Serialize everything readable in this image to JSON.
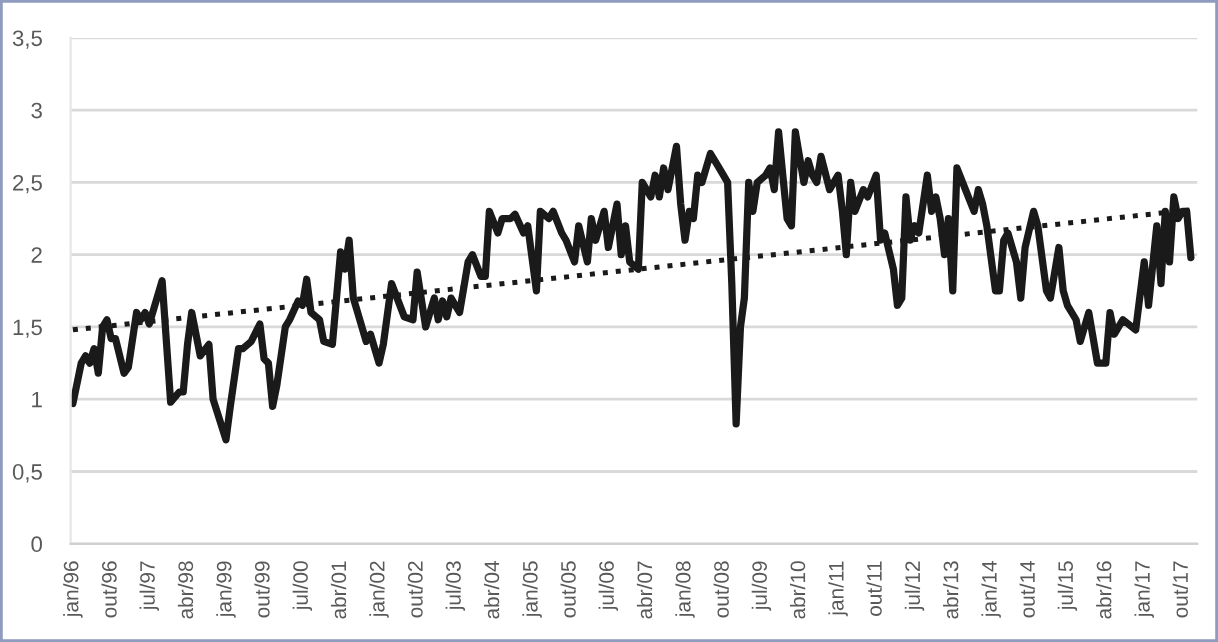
{
  "chart_data": {
    "type": "line",
    "x": [
      "1996-01",
      "1996-03",
      "1996-04",
      "1996-05",
      "1996-06",
      "1996-07",
      "1996-08",
      "1996-09",
      "1996-10",
      "1996-11",
      "1997-01",
      "1997-02",
      "1997-04",
      "1997-05",
      "1997-06",
      "1997-07",
      "1997-10",
      "1997-12",
      "1998-02",
      "1998-03",
      "1998-04",
      "1998-05",
      "1998-07",
      "1998-09",
      "1998-10",
      "1999-01",
      "1999-02",
      "1999-04",
      "1999-05",
      "1999-07",
      "1999-09",
      "1999-10",
      "1999-11",
      "1999-12",
      "2000-01",
      "2000-03",
      "2000-04",
      "2000-06",
      "2000-07",
      "2000-08",
      "2000-09",
      "2000-11",
      "2000-12",
      "2001-02",
      "2001-04",
      "2001-05",
      "2001-06",
      "2001-07",
      "2001-08",
      "2001-10",
      "2001-11",
      "2002-01",
      "2002-02",
      "2002-04",
      "2002-07",
      "2002-09",
      "2002-10",
      "2002-12",
      "2003-02",
      "2003-03",
      "2003-04",
      "2003-05",
      "2003-06",
      "2003-08",
      "2003-10",
      "2003-11",
      "2004-01",
      "2004-02",
      "2004-03",
      "2004-05",
      "2004-06",
      "2004-08",
      "2004-09",
      "2004-11",
      "2004-12",
      "2005-02",
      "2005-03",
      "2005-05",
      "2005-06",
      "2005-08",
      "2005-09",
      "2005-11",
      "2005-12",
      "2006-02",
      "2006-03",
      "2006-04",
      "2006-06",
      "2006-07",
      "2006-09",
      "2006-10",
      "2006-11",
      "2006-12",
      "2007-02",
      "2007-03",
      "2007-05",
      "2007-06",
      "2007-07",
      "2007-08",
      "2007-09",
      "2007-11",
      "2007-12",
      "2008-01",
      "2008-02",
      "2008-03",
      "2008-04",
      "2008-05",
      "2008-07",
      "2008-09",
      "2008-11",
      "2008-12",
      "2009-01",
      "2009-02",
      "2009-03",
      "2009-04",
      "2009-05",
      "2009-06",
      "2009-08",
      "2009-09",
      "2009-10",
      "2009-11",
      "2009-12",
      "2010-01",
      "2010-02",
      "2010-03",
      "2010-05",
      "2010-06",
      "2010-07",
      "2010-08",
      "2010-09",
      "2010-11",
      "2011-01",
      "2011-02",
      "2011-03",
      "2011-04",
      "2011-05",
      "2011-07",
      "2011-08",
      "2011-10",
      "2011-11",
      "2011-12",
      "2012-02",
      "2012-03",
      "2012-04",
      "2012-05",
      "2012-06",
      "2012-07",
      "2012-08",
      "2012-10",
      "2012-11",
      "2012-12",
      "2013-01",
      "2013-02",
      "2013-03",
      "2013-04",
      "2013-05",
      "2013-07",
      "2013-09",
      "2013-10",
      "2013-11",
      "2013-12",
      "2014-02",
      "2014-03",
      "2014-04",
      "2014-05",
      "2014-07",
      "2014-08",
      "2014-09",
      "2014-11",
      "2014-12",
      "2015-02",
      "2015-03",
      "2015-05",
      "2015-06",
      "2015-07",
      "2015-09",
      "2015-10",
      "2015-12",
      "2016-02",
      "2016-04",
      "2016-05",
      "2016-06",
      "2016-08",
      "2016-11",
      "2017-01",
      "2017-02",
      "2017-04",
      "2017-05",
      "2017-06",
      "2017-07",
      "2017-08",
      "2017-09",
      "2017-10",
      "2017-11",
      "2017-12"
    ],
    "series": [
      {
        "color": "#1a1a1a",
        "line_style": "solid",
        "values": [
          0.97,
          1.25,
          1.3,
          1.25,
          1.35,
          1.18,
          1.5,
          1.55,
          1.42,
          1.42,
          1.18,
          1.22,
          1.6,
          1.55,
          1.6,
          1.52,
          1.82,
          0.98,
          1.05,
          1.05,
          1.38,
          1.6,
          1.3,
          1.38,
          1.0,
          0.72,
          0.95,
          1.35,
          1.35,
          1.4,
          1.52,
          1.28,
          1.25,
          0.95,
          1.1,
          1.5,
          1.55,
          1.68,
          1.65,
          1.83,
          1.6,
          1.55,
          1.4,
          1.38,
          2.02,
          1.9,
          2.1,
          1.7,
          1.6,
          1.4,
          1.45,
          1.25,
          1.38,
          1.8,
          1.57,
          1.55,
          1.88,
          1.5,
          1.7,
          1.55,
          1.68,
          1.57,
          1.7,
          1.6,
          1.95,
          2.0,
          1.85,
          1.85,
          2.3,
          2.15,
          2.25,
          2.25,
          2.28,
          2.15,
          2.2,
          1.75,
          2.3,
          2.25,
          2.3,
          2.15,
          2.1,
          1.95,
          2.2,
          1.95,
          2.25,
          2.1,
          2.3,
          2.05,
          2.35,
          2.0,
          2.2,
          1.95,
          1.9,
          2.5,
          2.4,
          2.55,
          2.4,
          2.6,
          2.45,
          2.75,
          2.35,
          2.1,
          2.3,
          2.25,
          2.55,
          2.5,
          2.7,
          2.6,
          2.5,
          1.8,
          0.83,
          1.5,
          1.7,
          2.5,
          2.3,
          2.5,
          2.55,
          2.6,
          2.45,
          2.85,
          2.55,
          2.25,
          2.2,
          2.85,
          2.5,
          2.65,
          2.55,
          2.5,
          2.68,
          2.45,
          2.55,
          2.3,
          2.0,
          2.5,
          2.3,
          2.45,
          2.4,
          2.55,
          2.1,
          2.15,
          1.9,
          1.65,
          1.7,
          2.4,
          2.1,
          2.2,
          2.15,
          2.55,
          2.3,
          2.4,
          2.25,
          2.0,
          2.25,
          1.75,
          2.6,
          2.45,
          2.3,
          2.45,
          2.35,
          2.2,
          1.75,
          1.75,
          2.1,
          2.15,
          1.95,
          1.7,
          2.05,
          2.3,
          2.2,
          1.75,
          1.7,
          2.05,
          1.75,
          1.65,
          1.55,
          1.4,
          1.6,
          1.25,
          1.25,
          1.6,
          1.45,
          1.55,
          1.48,
          1.95,
          1.65,
          2.2,
          1.8,
          2.3,
          1.95,
          2.4,
          2.25,
          2.3,
          2.3,
          1.98
        ]
      },
      {
        "type": "line",
        "color": "#1a1a1a",
        "line_style": "dotted",
        "x": [
          "1996-01",
          "2017-12"
        ],
        "values": [
          1.48,
          2.31
        ]
      }
    ],
    "xlim": [
      "1995-12-16",
      "2018-01-16"
    ],
    "xticks": [
      {
        "value": "1996-01",
        "label": "jan/96"
      },
      {
        "value": "1996-10",
        "label": "out/96"
      },
      {
        "value": "1997-07",
        "label": "jul/97"
      },
      {
        "value": "1998-04",
        "label": "abr/98"
      },
      {
        "value": "1999-01",
        "label": "jan/99"
      },
      {
        "value": "1999-10",
        "label": "out/99"
      },
      {
        "value": "2000-07",
        "label": "jul/00"
      },
      {
        "value": "2001-04",
        "label": "abr/01"
      },
      {
        "value": "2002-01",
        "label": "jan/02"
      },
      {
        "value": "2002-10",
        "label": "out/02"
      },
      {
        "value": "2003-07",
        "label": "jul/03"
      },
      {
        "value": "2004-04",
        "label": "abr/04"
      },
      {
        "value": "2005-01",
        "label": "jan/05"
      },
      {
        "value": "2005-10",
        "label": "out/05"
      },
      {
        "value": "2006-07",
        "label": "jul/06"
      },
      {
        "value": "2007-04",
        "label": "abr/07"
      },
      {
        "value": "2008-01",
        "label": "jan/08"
      },
      {
        "value": "2008-10",
        "label": "out/08"
      },
      {
        "value": "2009-07",
        "label": "jul/09"
      },
      {
        "value": "2010-04",
        "label": "abr/10"
      },
      {
        "value": "2011-01",
        "label": "jan/11"
      },
      {
        "value": "2011-10",
        "label": "out/11"
      },
      {
        "value": "2012-07",
        "label": "jul/12"
      },
      {
        "value": "2013-04",
        "label": "abr/13"
      },
      {
        "value": "2014-01",
        "label": "jan/14"
      },
      {
        "value": "2014-10",
        "label": "out/14"
      },
      {
        "value": "2015-07",
        "label": "jul/15"
      },
      {
        "value": "2016-04",
        "label": "abr/16"
      },
      {
        "value": "2017-01",
        "label": "jan/17"
      },
      {
        "value": "2017-10",
        "label": "out/17"
      }
    ],
    "ylim": [
      0,
      3.5
    ],
    "yticks": [
      0,
      {
        "value": 0.5,
        "label": "0,5"
      },
      1,
      {
        "value": 1.5,
        "label": "1,5"
      },
      2,
      {
        "value": 2.5,
        "label": "2,5"
      },
      3,
      {
        "value": 3.5,
        "label": "3,5"
      }
    ],
    "grid": "y",
    "marker": "none"
  }
}
